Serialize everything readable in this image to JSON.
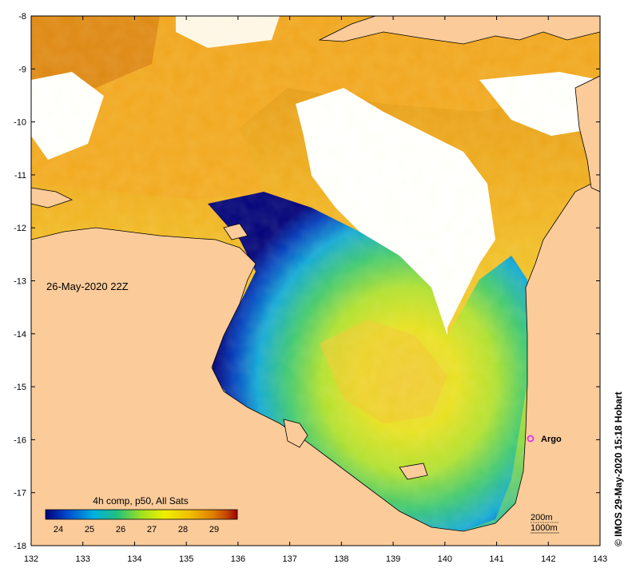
{
  "map": {
    "date_label": "26-May-2020 22Z",
    "credit": "© IMOS 29-May-2020 15:18 Hobart",
    "lon_ticks": [
      "132",
      "133",
      "134",
      "135",
      "136",
      "137",
      "138",
      "139",
      "140",
      "141",
      "142",
      "143"
    ],
    "lat_ticks": [
      "-8",
      "-9",
      "-10",
      "-11",
      "-12",
      "-13",
      "-14",
      "-15",
      "-16",
      "-17",
      "-18"
    ],
    "argo_label": "Argo",
    "isobath_labels": [
      "200m",
      "1000m"
    ],
    "colors": {
      "land": "#fbcb9a",
      "cloud": "#ffffff",
      "argo": "#e040e0"
    }
  },
  "legend": {
    "title": "4h comp, p50, All Sats",
    "ticks": [
      "24",
      "25",
      "26",
      "27",
      "28",
      "29"
    ],
    "colors": [
      "#00007a",
      "#0050d0",
      "#00b0e0",
      "#20c080",
      "#a0e020",
      "#f0f000",
      "#f0c000",
      "#e08000",
      "#c04000",
      "#a00000"
    ]
  }
}
